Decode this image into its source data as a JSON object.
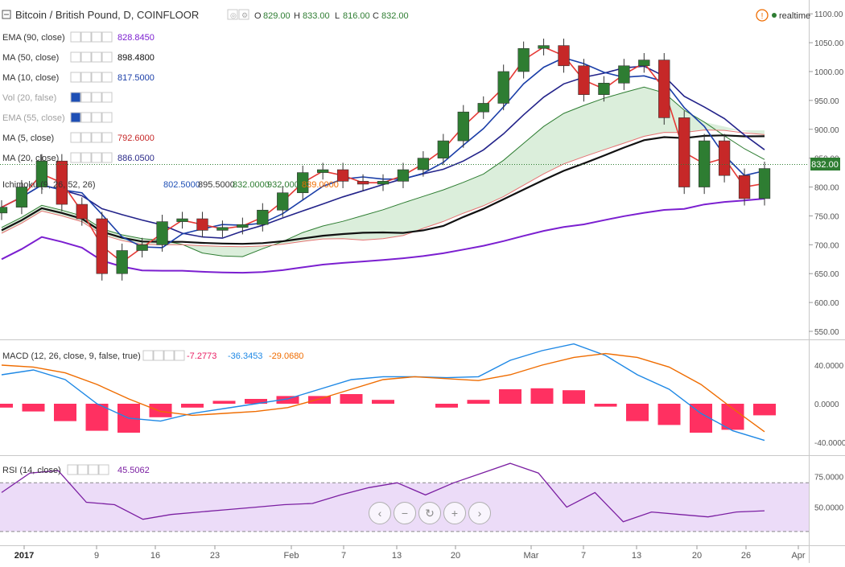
{
  "header": {
    "title": "Bitcoin / British Pound, D, COINFLOOR",
    "ohlc": {
      "o_label": "O",
      "o": "829.00",
      "h_label": "H",
      "h": "833.00",
      "l_label": "L",
      "l": "816.00",
      "c_label": "C",
      "c": "832.00"
    },
    "realtime": "realtime",
    "warning_glyph": "!"
  },
  "indicators": [
    {
      "label": "EMA (90, close)",
      "value": "828.8450",
      "color": "#7b1fd0",
      "dim": false
    },
    {
      "label": "MA (50, close)",
      "value": "898.4800",
      "color": "#111111",
      "dim": false
    },
    {
      "label": "MA (10, close)",
      "value": "817.5000",
      "color": "#1a3ea8",
      "dim": false
    },
    {
      "label": "Vol (20, false)",
      "value": "",
      "color": "#9e9e9e",
      "dim": true
    },
    {
      "label": "EMA (55, close)",
      "value": "",
      "color": "#9e9e9e",
      "dim": true
    },
    {
      "label": "MA (5, close)",
      "value": "792.6000",
      "color": "#c62828",
      "dim": false
    },
    {
      "label": "MA (20, close)",
      "value": "886.0500",
      "color": "#2b2b8a",
      "dim": false
    }
  ],
  "ichimoku": {
    "label": "Ichimoku (9, 26, 52, 26)",
    "values": [
      {
        "v": "802.5000",
        "color": "#1e4fb5"
      },
      {
        "v": "895.5000",
        "color": "#333333"
      },
      {
        "v": "832.0000",
        "color": "#2e7d32"
      },
      {
        "v": "932.0000",
        "color": "#2e7d32"
      },
      {
        "v": "839.0000",
        "color": "#ef6c00"
      }
    ]
  },
  "macd": {
    "label": "MACD (12, 26, close, 9, false, true)",
    "values": [
      {
        "v": "-7.2773",
        "color": "#e91e63"
      },
      {
        "v": "-36.3453",
        "color": "#1e88e5"
      },
      {
        "v": "-29.0680",
        "color": "#ef6c00"
      }
    ],
    "ticks": [
      "40.0000",
      "0.0000",
      "-40.0000"
    ]
  },
  "rsi": {
    "label": "RSI (14, close)",
    "value": "45.5062",
    "color": "#7b1fa2",
    "ticks": [
      "75.0000",
      "50.0000"
    ]
  },
  "price_axis_ticks": [
    "1100.00",
    "1050.00",
    "1000.00",
    "950.00",
    "900.00",
    "850.00",
    "800.00",
    "750.00",
    "700.00",
    "650.00",
    "600.00",
    "550.00"
  ],
  "last_price_label": "832.00",
  "x_axis_labels": [
    "2017",
    "9",
    "16",
    "23",
    "Feb",
    "7",
    "13",
    "20",
    "Mar",
    "7",
    "13",
    "20",
    "26",
    "Apr"
  ],
  "nav_controls": [
    "‹",
    "−",
    "↻",
    "+",
    "›"
  ],
  "colors": {
    "up": "#2e7d32",
    "down": "#c62828",
    "ema90": "#7b1fd0",
    "ma50": "#111111",
    "ma10": "#1a3ea8",
    "ma5": "#e53935",
    "ma20": "#23238a",
    "macd_line": "#1e88e5",
    "signal": "#ef6c00",
    "hist": "#ff1a50",
    "rsi": "#7b1fa2",
    "rsi_band": "#ecdcf8",
    "cloud_green": "#d7ecd7",
    "cloud_red": "#f6d6d6"
  },
  "chart_data": {
    "type": "line",
    "x_dates": [
      "2016-12-30",
      "2017-01-02",
      "2017-01-04",
      "2017-01-06",
      "2017-01-09",
      "2017-01-11",
      "2017-01-13",
      "2017-01-16",
      "2017-01-18",
      "2017-01-20",
      "2017-01-23",
      "2017-01-25",
      "2017-01-27",
      "2017-01-30",
      "2017-02-01",
      "2017-02-03",
      "2017-02-06",
      "2017-02-08",
      "2017-02-10",
      "2017-02-13",
      "2017-02-15",
      "2017-02-17",
      "2017-02-20",
      "2017-02-22",
      "2017-02-24",
      "2017-02-27",
      "2017-03-01",
      "2017-03-03",
      "2017-03-06",
      "2017-03-08",
      "2017-03-10",
      "2017-03-13",
      "2017-03-15",
      "2017-03-17",
      "2017-03-20",
      "2017-03-22",
      "2017-03-24",
      "2017-03-26",
      "2017-03-28"
    ],
    "series": [
      {
        "name": "Bitcoin / British Pound, D, COINFLOOR",
        "values": [
          765,
          800,
          845,
          770,
          745,
          650,
          690,
          700,
          740,
          745,
          725,
          730,
          735,
          760,
          790,
          825,
          830,
          810,
          805,
          810,
          830,
          850,
          880,
          930,
          945,
          1000,
          1040,
          1045,
          1010,
          960,
          980,
          1010,
          1020,
          920,
          800,
          880,
          820,
          780,
          832
        ]
      }
    ],
    "ylim": [
      520,
      1110
    ]
  },
  "macd_data": {
    "macd": [
      30,
      35,
      25,
      0,
      -15,
      -18,
      -10,
      -5,
      0,
      5,
      15,
      25,
      28,
      28,
      27,
      28,
      45,
      55,
      62,
      50,
      30,
      15,
      -10,
      -28,
      -38
    ],
    "signal": [
      40,
      38,
      32,
      20,
      5,
      -8,
      -12,
      -10,
      -8,
      -4,
      5,
      15,
      25,
      28,
      26,
      24,
      30,
      40,
      48,
      52,
      48,
      38,
      20,
      -5,
      -29
    ],
    "hist": [
      -4,
      -8,
      -18,
      -28,
      -30,
      -14,
      -4,
      3,
      5,
      8,
      8,
      10,
      4,
      0,
      -4,
      4,
      15,
      16,
      14,
      -3,
      -18,
      -22,
      -30,
      -27,
      -12
    ],
    "range": [
      -50,
      60
    ]
  },
  "rsi_data": {
    "values": [
      62,
      78,
      80,
      54,
      52,
      40,
      44,
      46,
      48,
      50,
      52,
      53,
      60,
      66,
      70,
      60,
      70,
      78,
      86,
      78,
      50,
      62,
      38,
      46,
      44,
      42,
      46,
      47
    ],
    "band": [
      30,
      70
    ],
    "range": [
      20,
      90
    ]
  }
}
